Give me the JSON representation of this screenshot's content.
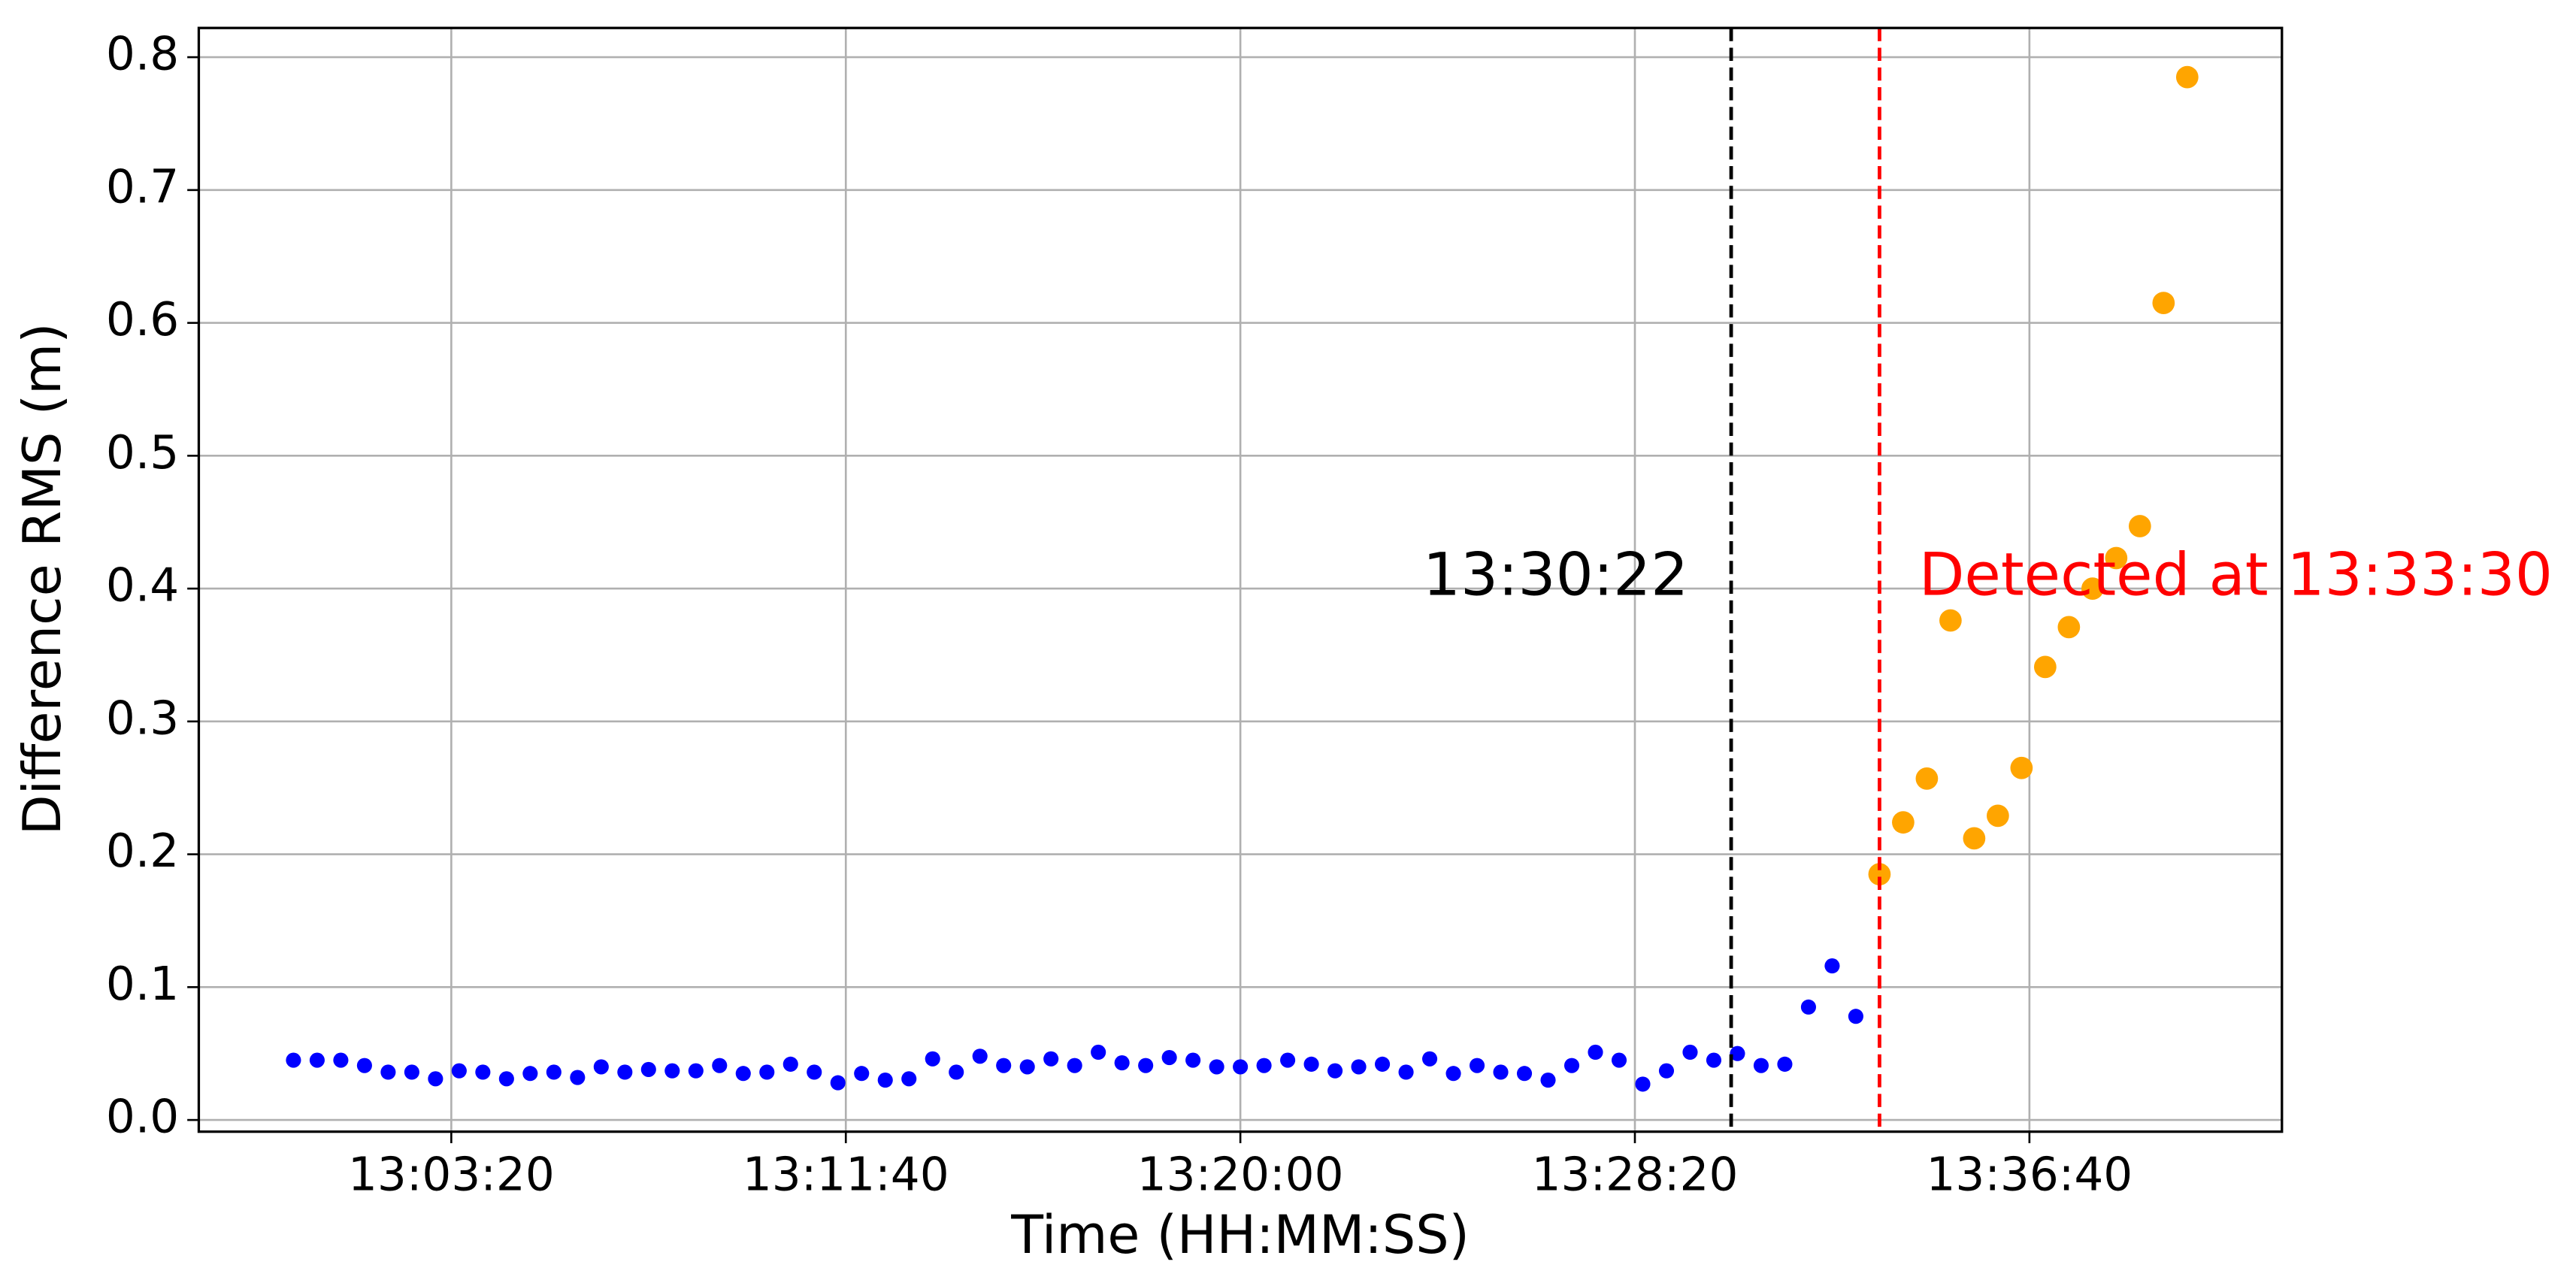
{
  "chart_data": {
    "type": "scatter",
    "xlabel": "Time (HH:MM:SS)",
    "ylabel": "Difference RMS (m)",
    "xlim": [
      46680,
      49320
    ],
    "ylim": [
      -0.0088,
      0.822
    ],
    "xticks": [
      {
        "value": 47000,
        "label": "13:03:20"
      },
      {
        "value": 47500,
        "label": "13:11:40"
      },
      {
        "value": 48000,
        "label": "13:20:00"
      },
      {
        "value": 48500,
        "label": "13:28:20"
      },
      {
        "value": 49000,
        "label": "13:36:40"
      }
    ],
    "yticks": [
      {
        "value": 0,
        "label": "0.0"
      },
      0.1,
      0.2,
      0.3,
      0.4,
      0.5,
      0.6,
      0.7,
      0.8
    ],
    "grid": true,
    "series": [
      {
        "color": "#0000ff",
        "x": [
          46800,
          46830,
          46860,
          46890,
          46920,
          46950,
          46980,
          47010,
          47040,
          47070,
          47100,
          47130,
          47160,
          47190,
          47220,
          47250,
          47280,
          47310,
          47340,
          47370,
          47400,
          47430,
          47460,
          47490,
          47520,
          47550,
          47580,
          47610,
          47640,
          47670,
          47700,
          47730,
          47760,
          47790,
          47820,
          47850,
          47880,
          47910,
          47940,
          47970,
          48000,
          48030,
          48060,
          48090,
          48120,
          48150,
          48180,
          48210,
          48240,
          48270,
          48300,
          48330,
          48360,
          48390,
          48420,
          48450,
          48480,
          48510,
          48540,
          48570,
          48600,
          48630,
          48660,
          48690,
          48720,
          48750,
          48780
        ],
        "values": [
          0.045,
          0.045,
          0.045,
          0.041,
          0.036,
          0.036,
          0.031,
          0.037,
          0.036,
          0.031,
          0.035,
          0.036,
          0.032,
          0.04,
          0.036,
          0.038,
          0.037,
          0.037,
          0.041,
          0.035,
          0.036,
          0.042,
          0.036,
          0.028,
          0.035,
          0.03,
          0.031,
          0.046,
          0.036,
          0.048,
          0.041,
          0.04,
          0.046,
          0.041,
          0.051,
          0.043,
          0.041,
          0.047,
          0.045,
          0.04,
          0.04,
          0.041,
          0.045,
          0.042,
          0.037,
          0.04,
          0.042,
          0.036,
          0.046,
          0.035,
          0.041,
          0.036,
          0.035,
          0.03,
          0.041,
          0.051,
          0.045,
          0.027,
          0.037,
          0.051,
          0.045,
          0.05,
          0.041,
          0.042,
          0.085,
          0.116,
          0.078
        ]
      },
      {
        "color": "#ffa500",
        "x": [
          48810,
          48840,
          48870,
          48900,
          48930,
          48960,
          48990,
          49020,
          49050,
          49080,
          49110,
          49140,
          49170,
          49200
        ],
        "values": [
          0.185,
          0.224,
          0.257,
          0.376,
          0.212,
          0.229,
          0.265,
          0.341,
          0.371,
          0.4,
          0.423,
          0.447,
          0.615,
          0.785
        ]
      }
    ],
    "vlines": [
      {
        "x": 48622,
        "color": "#000000",
        "label": "13:30:22"
      },
      {
        "x": 48810,
        "color": "#ff0000",
        "label": "Detected at 13:33:30"
      }
    ]
  }
}
